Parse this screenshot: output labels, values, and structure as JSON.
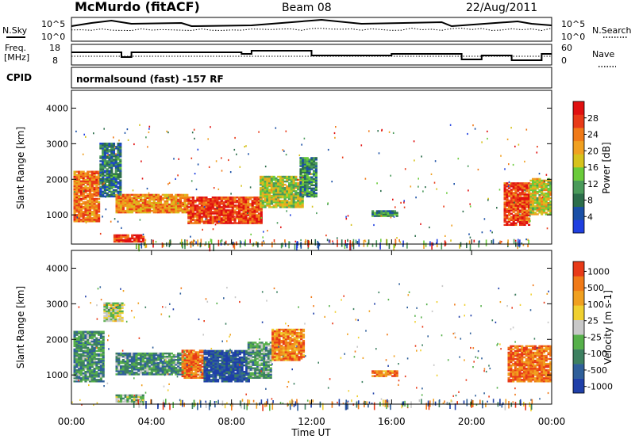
{
  "header": {
    "station": "McMurdo (fitACF)",
    "beam": "Beam 08",
    "date": "22/Aug/2011",
    "cpid_label": "CPID",
    "cpid_value": "normalsound (fast) -157 RF"
  },
  "noise_panel": {
    "left_label": "N.Sky",
    "left_ticks": [
      "10^5",
      "10^0"
    ],
    "right_label": "N.Search",
    "right_ticks": [
      "10^5",
      "10^0"
    ]
  },
  "freq_panel": {
    "left_label_line1": "Freq.",
    "left_label_line2": "[MHz]",
    "left_ticks": [
      "18",
      "8"
    ],
    "right_label": "Nave",
    "right_ticks": [
      "60",
      "0"
    ]
  },
  "time_axis": {
    "label": "Time UT",
    "ticks": [
      "00:00",
      "04:00",
      "08:00",
      "12:00",
      "16:00",
      "20:00",
      "00:00"
    ]
  },
  "chart_data": [
    {
      "type": "heatmap",
      "title": "Power",
      "ylabel": "Slant Range [km]",
      "xlabel": "Time UT",
      "xlim": [
        0,
        24
      ],
      "ylim": [
        180,
        4500
      ],
      "yticks": [
        "1000",
        "2000",
        "3000",
        "4000"
      ],
      "colorbar": {
        "label": "Power [dB]",
        "ticks": [
          "4",
          "8",
          "12",
          "16",
          "20",
          "24",
          "28"
        ],
        "colors": [
          "#1f3fe0",
          "#1a4fa6",
          "#2c6e4b",
          "#4a9a5a",
          "#6acb3a",
          "#d6c21c",
          "#f0a020",
          "#f07a18",
          "#e83a18",
          "#e01010"
        ],
        "range": [
          0,
          30
        ]
      },
      "regions": [
        {
          "t0": 0.1,
          "t1": 1.4,
          "r0": 800,
          "r1": 2200,
          "level": 0.75
        },
        {
          "t0": 1.4,
          "t1": 2.4,
          "r0": 1500,
          "r1": 3000,
          "level": 0.25
        },
        {
          "t0": 2.2,
          "t1": 5.8,
          "r0": 1050,
          "r1": 1550,
          "level": 0.7
        },
        {
          "t0": 5.8,
          "t1": 9.5,
          "r0": 750,
          "r1": 1500,
          "level": 0.85
        },
        {
          "t0": 9.4,
          "t1": 11.5,
          "r0": 1200,
          "r1": 2100,
          "level": 0.5
        },
        {
          "t0": 11.4,
          "t1": 12.2,
          "r0": 1500,
          "r1": 2600,
          "level": 0.3
        },
        {
          "t0": 2.1,
          "t1": 3.6,
          "r0": 230,
          "r1": 450,
          "level": 0.9
        },
        {
          "t0": 21.6,
          "t1": 22.9,
          "r0": 700,
          "r1": 1900,
          "level": 0.85
        },
        {
          "t0": 22.9,
          "t1": 23.9,
          "r0": 1000,
          "r1": 2000,
          "level": 0.55
        },
        {
          "t0": 15.0,
          "t1": 16.3,
          "r0": 950,
          "r1": 1100,
          "level": 0.3
        }
      ]
    },
    {
      "type": "heatmap",
      "title": "Velocity",
      "ylabel": "Slant Range [km]",
      "xlabel": "Time UT",
      "xlim": [
        0,
        24
      ],
      "ylim": [
        180,
        4500
      ],
      "yticks": [
        "1000",
        "2000",
        "3000",
        "4000"
      ],
      "colorbar": {
        "label": "Velocity [m s-1]",
        "ticks": [
          "1000",
          "500",
          "100",
          "25",
          "-25",
          "-100",
          "-500",
          "-1000"
        ],
        "colors": [
          "#1f3fa8",
          "#2f5f9a",
          "#3d8060",
          "#56b04a",
          "#c8c8c8",
          "#f0d030",
          "#f0a020",
          "#f07a18",
          "#e83a18"
        ],
        "range": [
          -1000,
          1000
        ]
      },
      "regions": [
        {
          "t0": 0.1,
          "t1": 1.6,
          "r0": 800,
          "r1": 2200,
          "level": 0.3
        },
        {
          "t0": 1.6,
          "t1": 2.5,
          "r0": 2500,
          "r1": 3000,
          "level": 0.5
        },
        {
          "t0": 2.2,
          "t1": 6.0,
          "r0": 1000,
          "r1": 1600,
          "level": 0.3
        },
        {
          "t0": 5.5,
          "t1": 6.6,
          "r0": 900,
          "r1": 1700,
          "level": 0.85
        },
        {
          "t0": 6.6,
          "t1": 8.8,
          "r0": 800,
          "r1": 1700,
          "level": 0.12
        },
        {
          "t0": 8.8,
          "t1": 10.0,
          "r0": 900,
          "r1": 1900,
          "level": 0.35
        },
        {
          "t0": 10.0,
          "t1": 11.6,
          "r0": 1400,
          "r1": 2300,
          "level": 0.8
        },
        {
          "t0": 21.8,
          "t1": 23.9,
          "r0": 800,
          "r1": 1800,
          "level": 0.85
        },
        {
          "t0": 2.2,
          "t1": 3.6,
          "r0": 230,
          "r1": 450,
          "level": 0.4
        },
        {
          "t0": 15.0,
          "t1": 16.3,
          "r0": 950,
          "r1": 1100,
          "level": 0.8
        }
      ]
    }
  ]
}
